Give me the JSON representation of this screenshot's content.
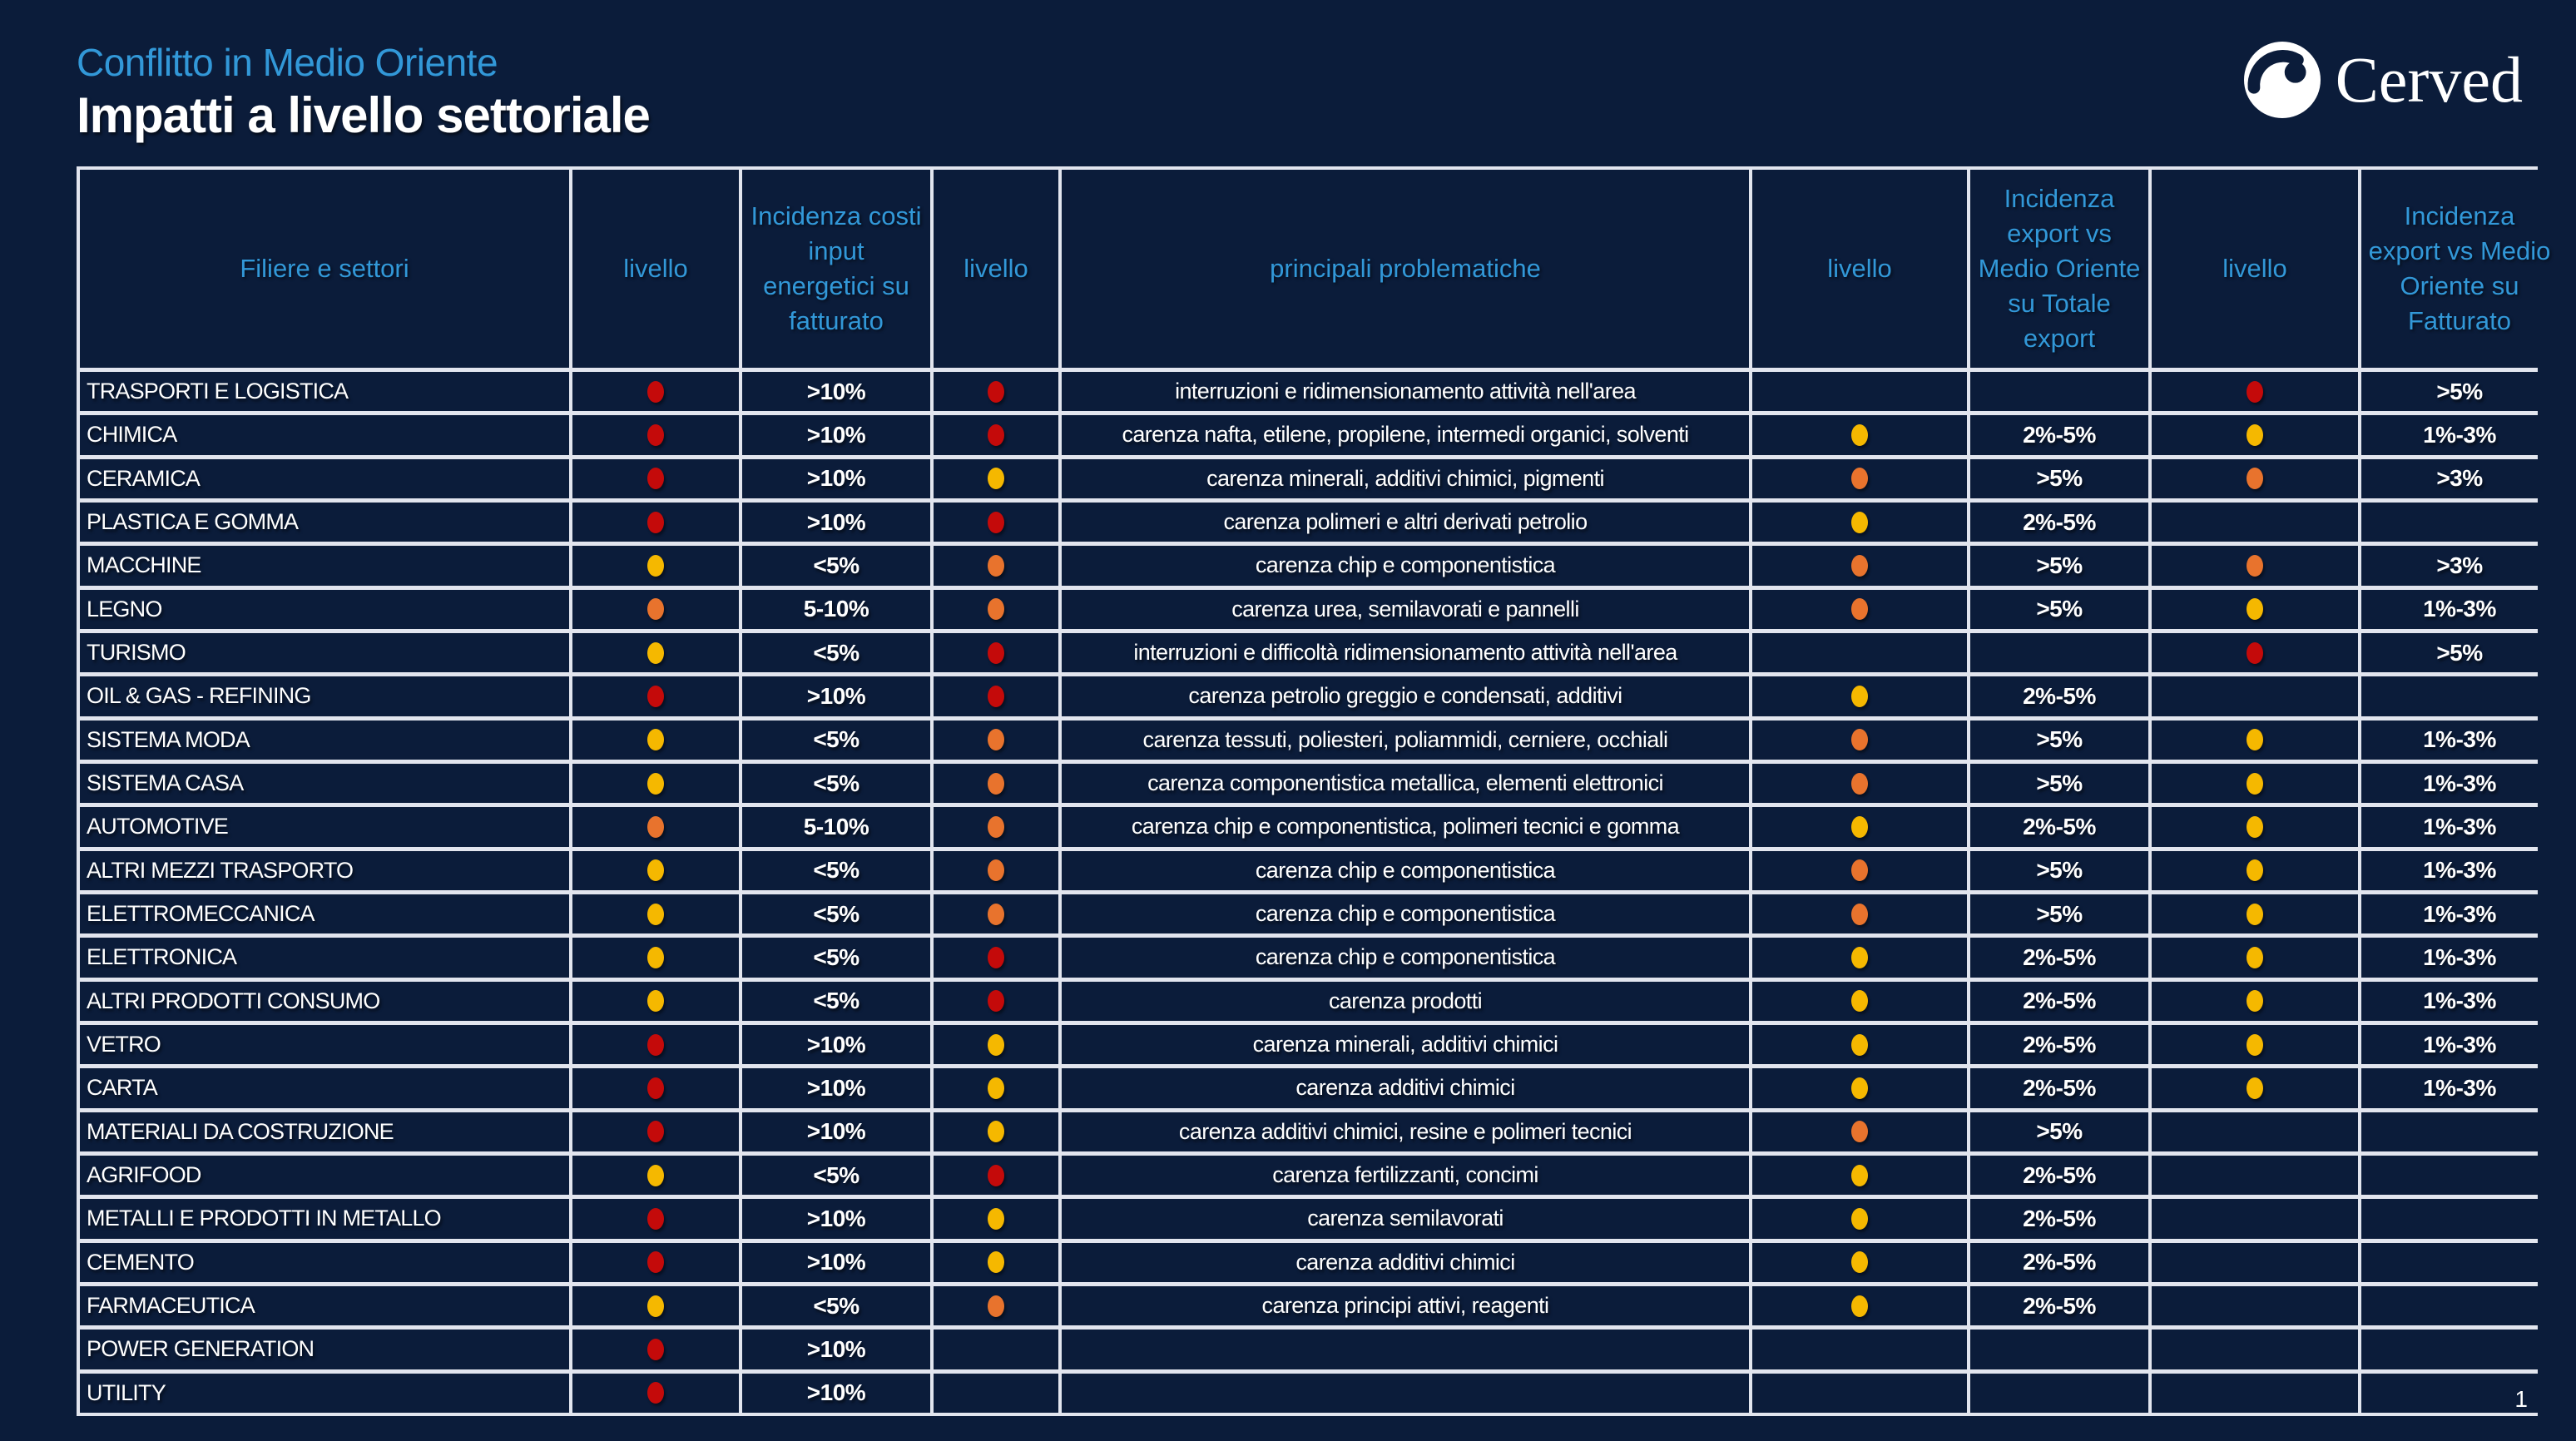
{
  "page": {
    "subtitle": "Conflitto in Medio Oriente",
    "title": "Impatti a livello settoriale",
    "logo_text": "Cerved",
    "page_number": "1"
  },
  "colors": {
    "background": "#0B1C3A",
    "accent_blue": "#3298D8",
    "border": "#E2E5EE",
    "red": "#C40A0A",
    "orange": "#E8732D",
    "yellow": "#F5B800"
  },
  "table": {
    "headers": [
      "Filiere e settori",
      "livello",
      "Incidenza costi input energetici su fatturato",
      "livello",
      "principali problematiche",
      "livello",
      "Incidenza export vs Medio Oriente su Totale export",
      "livello",
      "Incidenza export vs Medio Oriente su Fatturato"
    ],
    "rows": [
      {
        "sector": "TRASPORTI E LOGISTICA",
        "level1": "red",
        "energy_cost": ">10%",
        "level2": "red",
        "issues": "interruzioni e ridimensionamento attività nell'area",
        "level3": "",
        "export_share": "",
        "level4": "red",
        "export_revenue": ">5%"
      },
      {
        "sector": "CHIMICA",
        "level1": "red",
        "energy_cost": ">10%",
        "level2": "red",
        "issues": "carenza nafta, etilene, propilene, intermedi organici, solventi",
        "level3": "yellow",
        "export_share": "2%-5%",
        "level4": "yellow",
        "export_revenue": "1%-3%"
      },
      {
        "sector": "CERAMICA",
        "level1": "red",
        "energy_cost": ">10%",
        "level2": "yellow",
        "issues": "carenza minerali, additivi chimici, pigmenti",
        "level3": "orange",
        "export_share": ">5%",
        "level4": "orange",
        "export_revenue": ">3%"
      },
      {
        "sector": "PLASTICA E GOMMA",
        "level1": "red",
        "energy_cost": ">10%",
        "level2": "red",
        "issues": "carenza polimeri e altri derivati petrolio",
        "level3": "yellow",
        "export_share": "2%-5%",
        "level4": "",
        "export_revenue": ""
      },
      {
        "sector": "MACCHINE",
        "level1": "yellow",
        "energy_cost": "<5%",
        "level2": "orange",
        "issues": "carenza chip e componentistica",
        "level3": "orange",
        "export_share": ">5%",
        "level4": "orange",
        "export_revenue": ">3%"
      },
      {
        "sector": "LEGNO",
        "level1": "orange",
        "energy_cost": "5-10%",
        "level2": "orange",
        "issues": "carenza urea, semilavorati e pannelli",
        "level3": "orange",
        "export_share": ">5%",
        "level4": "yellow",
        "export_revenue": "1%-3%"
      },
      {
        "sector": "TURISMO",
        "level1": "yellow",
        "energy_cost": "<5%",
        "level2": "red",
        "issues": "interruzioni e difficoltà ridimensionamento attività nell'area",
        "level3": "",
        "export_share": "",
        "level4": "red",
        "export_revenue": ">5%"
      },
      {
        "sector": "OIL & GAS - REFINING",
        "level1": "red",
        "energy_cost": ">10%",
        "level2": "red",
        "issues": "carenza petrolio greggio e condensati, additivi",
        "level3": "yellow",
        "export_share": "2%-5%",
        "level4": "",
        "export_revenue": ""
      },
      {
        "sector": "SISTEMA MODA",
        "level1": "yellow",
        "energy_cost": "<5%",
        "level2": "orange",
        "issues": "carenza tessuti, poliesteri, poliammidi, cerniere, occhiali",
        "level3": "orange",
        "export_share": ">5%",
        "level4": "yellow",
        "export_revenue": "1%-3%"
      },
      {
        "sector": "SISTEMA CASA",
        "level1": "yellow",
        "energy_cost": "<5%",
        "level2": "orange",
        "issues": "carenza componentistica metallica, elementi elettronici",
        "level3": "orange",
        "export_share": ">5%",
        "level4": "yellow",
        "export_revenue": "1%-3%"
      },
      {
        "sector": "AUTOMOTIVE",
        "level1": "orange",
        "energy_cost": "5-10%",
        "level2": "orange",
        "issues": "carenza chip e componentistica, polimeri tecnici e gomma",
        "level3": "yellow",
        "export_share": "2%-5%",
        "level4": "yellow",
        "export_revenue": "1%-3%"
      },
      {
        "sector": "ALTRI MEZZI TRASPORTO",
        "level1": "yellow",
        "energy_cost": "<5%",
        "level2": "orange",
        "issues": "carenza chip e componentistica",
        "level3": "orange",
        "export_share": ">5%",
        "level4": "yellow",
        "export_revenue": "1%-3%"
      },
      {
        "sector": "ELETTROMECCANICA",
        "level1": "yellow",
        "energy_cost": "<5%",
        "level2": "orange",
        "issues": "carenza chip e componentistica",
        "level3": "orange",
        "export_share": ">5%",
        "level4": "yellow",
        "export_revenue": "1%-3%"
      },
      {
        "sector": "ELETTRONICA",
        "level1": "yellow",
        "energy_cost": "<5%",
        "level2": "red",
        "issues": "carenza chip e componentistica",
        "level3": "yellow",
        "export_share": "2%-5%",
        "level4": "yellow",
        "export_revenue": "1%-3%"
      },
      {
        "sector": "ALTRI PRODOTTI CONSUMO",
        "level1": "yellow",
        "energy_cost": "<5%",
        "level2": "red",
        "issues": "carenza prodotti",
        "level3": "yellow",
        "export_share": "2%-5%",
        "level4": "yellow",
        "export_revenue": "1%-3%"
      },
      {
        "sector": "VETRO",
        "level1": "red",
        "energy_cost": ">10%",
        "level2": "yellow",
        "issues": "carenza minerali, additivi chimici",
        "level3": "yellow",
        "export_share": "2%-5%",
        "level4": "yellow",
        "export_revenue": "1%-3%"
      },
      {
        "sector": "CARTA",
        "level1": "red",
        "energy_cost": ">10%",
        "level2": "yellow",
        "issues": "carenza additivi chimici",
        "level3": "yellow",
        "export_share": "2%-5%",
        "level4": "yellow",
        "export_revenue": "1%-3%"
      },
      {
        "sector": "MATERIALI DA COSTRUZIONE",
        "level1": "red",
        "energy_cost": ">10%",
        "level2": "yellow",
        "issues": "carenza additivi chimici, resine e polimeri tecnici",
        "level3": "orange",
        "export_share": ">5%",
        "level4": "",
        "export_revenue": ""
      },
      {
        "sector": "AGRIFOOD",
        "level1": "yellow",
        "energy_cost": "<5%",
        "level2": "red",
        "issues": "carenza fertilizzanti, concimi",
        "level3": "yellow",
        "export_share": "2%-5%",
        "level4": "",
        "export_revenue": ""
      },
      {
        "sector": "METALLI E PRODOTTI IN METALLO",
        "level1": "red",
        "energy_cost": ">10%",
        "level2": "yellow",
        "issues": "carenza semilavorati",
        "level3": "yellow",
        "export_share": "2%-5%",
        "level4": "",
        "export_revenue": ""
      },
      {
        "sector": "CEMENTO",
        "level1": "red",
        "energy_cost": ">10%",
        "level2": "yellow",
        "issues": "carenza additivi chimici",
        "level3": "yellow",
        "export_share": "2%-5%",
        "level4": "",
        "export_revenue": ""
      },
      {
        "sector": "FARMACEUTICA",
        "level1": "yellow",
        "energy_cost": "<5%",
        "level2": "orange",
        "issues": "carenza principi attivi, reagenti",
        "level3": "yellow",
        "export_share": "2%-5%",
        "level4": "",
        "export_revenue": ""
      },
      {
        "sector": "POWER GENERATION",
        "level1": "red",
        "energy_cost": ">10%",
        "level2": "",
        "issues": "",
        "level3": "",
        "export_share": "",
        "level4": "",
        "export_revenue": ""
      },
      {
        "sector": "UTILITY",
        "level1": "red",
        "energy_cost": ">10%",
        "level2": "",
        "issues": "",
        "level3": "",
        "export_share": "",
        "level4": "",
        "export_revenue": ""
      }
    ]
  }
}
